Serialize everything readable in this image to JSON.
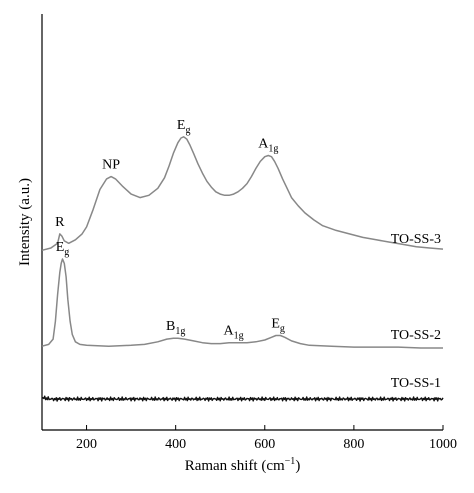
{
  "chart_data": {
    "type": "line",
    "title": "",
    "xlabel": "Raman shift (cm",
    "xlabel_sup": "−1",
    "xlabel_close": ")",
    "ylabel": "Intensity (a.u.)",
    "xlim": [
      100,
      1000
    ],
    "xticks": [
      200,
      400,
      600,
      800,
      1000
    ],
    "y_ticks_shown": false,
    "grid": false,
    "series": [
      {
        "name": "TO-SS-3",
        "color": "#888888",
        "x": [
          100,
          120,
          135,
          140,
          145,
          150,
          160,
          175,
          190,
          200,
          215,
          230,
          245,
          255,
          265,
          280,
          300,
          320,
          340,
          360,
          375,
          385,
          395,
          405,
          412,
          418,
          425,
          432,
          440,
          450,
          460,
          470,
          480,
          490,
          500,
          510,
          520,
          530,
          540,
          550,
          560,
          570,
          580,
          590,
          600,
          608,
          615,
          622,
          630,
          640,
          650,
          660,
          675,
          690,
          710,
          730,
          760,
          790,
          820,
          850,
          880,
          910,
          940,
          970,
          1000
        ],
        "y": [
          0.1,
          0.12,
          0.16,
          0.24,
          0.22,
          0.18,
          0.16,
          0.19,
          0.24,
          0.3,
          0.45,
          0.62,
          0.71,
          0.73,
          0.71,
          0.65,
          0.58,
          0.55,
          0.57,
          0.63,
          0.72,
          0.82,
          0.93,
          1.02,
          1.06,
          1.07,
          1.05,
          1.0,
          0.93,
          0.84,
          0.76,
          0.69,
          0.64,
          0.6,
          0.58,
          0.57,
          0.57,
          0.58,
          0.6,
          0.63,
          0.67,
          0.73,
          0.8,
          0.86,
          0.9,
          0.91,
          0.9,
          0.86,
          0.8,
          0.71,
          0.63,
          0.55,
          0.48,
          0.42,
          0.36,
          0.31,
          0.27,
          0.24,
          0.21,
          0.19,
          0.17,
          0.15,
          0.13,
          0.12,
          0.11
        ]
      },
      {
        "name": "TO-SS-2",
        "color": "#888888",
        "x": [
          100,
          115,
          125,
          130,
          135,
          140,
          143,
          146,
          150,
          154,
          158,
          163,
          168,
          175,
          185,
          200,
          250,
          300,
          330,
          360,
          380,
          395,
          405,
          420,
          440,
          460,
          480,
          500,
          520,
          540,
          560,
          580,
          600,
          615,
          625,
          635,
          645,
          660,
          680,
          700,
          750,
          800,
          850,
          900,
          950,
          1000
        ],
        "y": [
          0.02,
          0.04,
          0.1,
          0.3,
          0.6,
          0.85,
          0.95,
          1.0,
          0.95,
          0.8,
          0.55,
          0.3,
          0.15,
          0.07,
          0.04,
          0.03,
          0.02,
          0.03,
          0.04,
          0.07,
          0.1,
          0.11,
          0.11,
          0.1,
          0.08,
          0.06,
          0.05,
          0.05,
          0.06,
          0.06,
          0.06,
          0.07,
          0.09,
          0.12,
          0.14,
          0.14,
          0.12,
          0.08,
          0.05,
          0.03,
          0.02,
          0.01,
          0.01,
          0.01,
          0.0,
          0.0
        ]
      },
      {
        "name": "TO-SS-1",
        "color": "#111111",
        "x": [
          100,
          110,
          120,
          130,
          140,
          150,
          175,
          200,
          250,
          300,
          350,
          400,
          450,
          500,
          550,
          600,
          650,
          700,
          750,
          800,
          850,
          900,
          950,
          1000
        ],
        "y": [
          0.05,
          0.02,
          0.0,
          -0.01,
          0.0,
          0.0,
          0.0,
          0.0,
          0.0,
          0.0,
          0.0,
          0.0,
          0.0,
          0.0,
          0.0,
          0.0,
          0.0,
          0.0,
          0.0,
          0.0,
          0.0,
          0.0,
          0.0,
          0.0
        ]
      }
    ],
    "annotations": [
      {
        "series": "TO-SS-3",
        "x": 140,
        "base": "R",
        "sub": ""
      },
      {
        "series": "TO-SS-3",
        "x": 255,
        "base": "NP",
        "sub": ""
      },
      {
        "series": "TO-SS-3",
        "x": 418,
        "base": "E",
        "sub": "g"
      },
      {
        "series": "TO-SS-3",
        "x": 608,
        "base": "A",
        "sub": "1g"
      },
      {
        "series": "TO-SS-2",
        "x": 146,
        "base": "E",
        "sub": "g"
      },
      {
        "series": "TO-SS-2",
        "x": 400,
        "base": "B",
        "sub": "1g"
      },
      {
        "series": "TO-SS-2",
        "x": 530,
        "base": "A",
        "sub": "1g"
      },
      {
        "series": "TO-SS-2",
        "x": 630,
        "base": "E",
        "sub": "g"
      }
    ]
  }
}
